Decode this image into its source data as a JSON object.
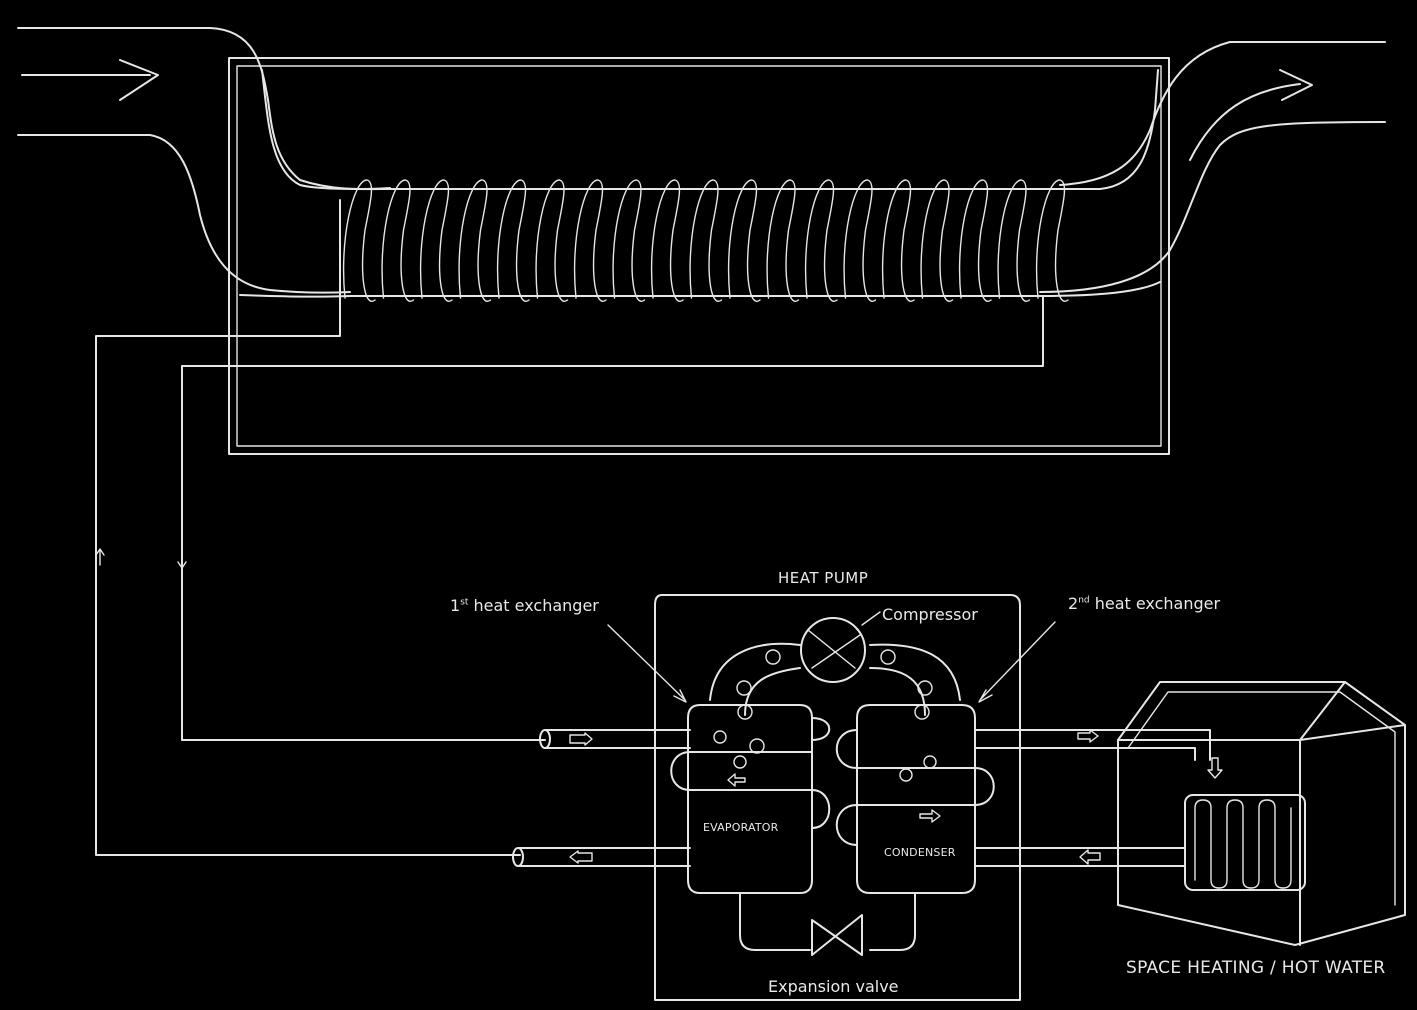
{
  "labels": {
    "heat_pump": "HEAT PUMP",
    "first_hx_num": "1",
    "first_hx_sup": "st",
    "first_hx_text": "heat exchanger",
    "compressor": "Compressor",
    "second_hx_num": "2",
    "second_hx_sup": "nd",
    "second_hx_text": "heat exchanger",
    "evaporator": "EVAPORATOR",
    "condenser": "CONDENSER",
    "expansion_valve": "Expansion valve",
    "space_heating": "SPACE HEATING / HOT WATER"
  },
  "colors": {
    "background": "#000000",
    "line": "#e6e6e6"
  }
}
